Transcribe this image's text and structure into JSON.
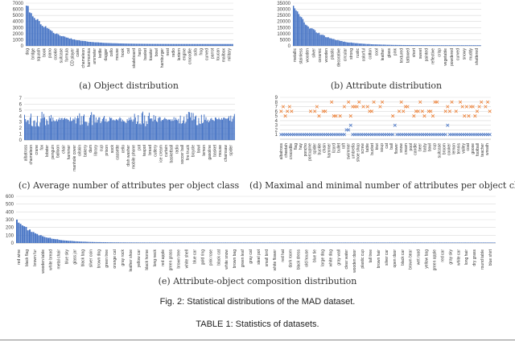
{
  "figure_caption": "Fig. 2: Statistical distributions of the MAD dataset.",
  "table_caption": "TABLE 1: Statistics of datasets.",
  "colors": {
    "bar": "#4472c4",
    "orange": "#ed7d31",
    "blue": "#4472c4",
    "grid": "#d9d9d9"
  },
  "chart_data": [
    {
      "id": "a",
      "type": "bar",
      "title": "(a) Object distribution",
      "ylim": [
        0,
        7000
      ],
      "yticks": [
        0,
        1000,
        2000,
        3000,
        4000,
        5000,
        6000,
        7000
      ],
      "n_bars": 130,
      "head": 6700,
      "decay": 14,
      "tail": 300,
      "categories": [
        "dog",
        "bridge",
        "squash",
        "book",
        "piano",
        "cookie",
        "suitcase",
        "formula",
        "CD player",
        "cake",
        "chameleon",
        "harmonica",
        "ammeter",
        "kettle",
        "dagger",
        "cello",
        "electric",
        "skateboard",
        "bowl",
        "bus",
        "toaster",
        "apple",
        "caterpillar",
        "goose",
        "curtain",
        "chess",
        "fruit",
        "picture",
        "toad",
        "crocodile",
        "window",
        "cherry",
        "gloves",
        "crossbow",
        "wallet",
        "cream",
        "plan",
        "cockroach",
        "chair",
        "hut",
        "bottle",
        "basket",
        "lock",
        "medicine",
        "hat",
        "skirt",
        "lantern",
        "rabbit",
        "brush",
        "apple pie",
        "coffee",
        "rocket",
        "snow",
        "microphone",
        "cat",
        "shoe",
        "umbrella",
        "pineapple",
        "hammer",
        "water",
        "shelf",
        "kite",
        "jar",
        "handbag",
        "pencil",
        "tree",
        "bread",
        "cup",
        "corn",
        "bench",
        "house",
        "robot",
        "cork",
        "motor",
        "mirror",
        "table",
        "hamster",
        "sofa",
        "fox",
        "frog",
        "hamburger",
        "cock",
        "hook",
        "radio",
        "vase",
        "hay",
        "engine",
        "nest",
        "wheel",
        "dryer",
        "gift",
        "soup",
        "rug",
        "pumpkin",
        "curved",
        "fish",
        "arrow",
        "lamp",
        "mouse",
        "guitar"
      ],
      "categories_shown": [
        "dog",
        "bridge",
        "squash",
        "book",
        "piano",
        "cookie",
        "suitcase",
        "formula",
        "CD player",
        "cake",
        "chameleon",
        "harmonica",
        "ammeter",
        "kettle",
        "dagger",
        "cello",
        "mouse",
        "hook",
        "cat",
        "skateboard",
        "harp",
        "basket",
        "toaster",
        "bowl",
        "hamburger",
        "nest",
        "radio",
        "lantern",
        "engine",
        "crocodile",
        "sofa",
        "frog",
        "curved",
        "parrot",
        "toucan",
        "mailbox",
        "military"
      ]
    },
    {
      "id": "b",
      "type": "bar",
      "title": "(b) Attribute distribution",
      "ylim": [
        0,
        35000
      ],
      "yticks": [
        0,
        5000,
        10000,
        15000,
        20000,
        25000,
        30000,
        35000
      ],
      "n_bars": 140,
      "head": 32000,
      "decay": 16,
      "tail": 500,
      "categories_shown": [
        "metallic",
        "stainless",
        "wooden",
        "silver",
        "ceramic",
        "wooden",
        "plastic",
        "decorative",
        "circular",
        "strong",
        "rustic",
        "colorful",
        "cotton",
        "cool",
        "leather",
        "glass",
        "pink",
        "textured",
        "tattooed",
        "short",
        "sweet",
        "painted",
        "reflective",
        "crisp",
        "vegetable",
        "powdered",
        "curved",
        "snowy",
        "muddy",
        "shattered"
      ]
    },
    {
      "id": "c",
      "type": "bar",
      "title": "(c) Average number of attributes per object class",
      "ylim": [
        0,
        7
      ],
      "yticks": [
        0,
        1,
        2,
        3,
        4,
        5,
        6,
        7
      ],
      "n_bars": 230,
      "mean": 3.5,
      "amp": 1.3,
      "categories_shown": [
        "albatross",
        "chameleon",
        "crane",
        "fox",
        "lobster",
        "penguin",
        "balloon",
        "chair",
        "hammer",
        "manhole cover",
        "oilskin",
        "bakery",
        "dam",
        "library",
        "cup",
        "prison",
        "sock",
        "cassette",
        "cello",
        "dish washer",
        "mobile phone",
        "pot",
        "teapot",
        "bread",
        "cutlery",
        "ice cream",
        "curtain",
        "basketball",
        "radio",
        "soccer ball",
        "fire truck",
        "bicycle",
        "bowl",
        "lemon",
        "gasoline",
        "basket",
        "mouse",
        "chainsaw",
        "spider"
      ]
    },
    {
      "id": "d",
      "type": "scatter",
      "title": "(d) Maximal and minimal number of attributes per object class",
      "ylim": [
        0,
        9
      ],
      "yticks": [
        1,
        2,
        3,
        4,
        5,
        6,
        7,
        8,
        9
      ],
      "n_points": 100,
      "series": [
        {
          "name": "max",
          "color": "#ed7d31",
          "marker": "x",
          "base": 6.5,
          "amp": 1.6
        },
        {
          "name": "min",
          "color": "#4472c4",
          "marker": "x",
          "base": 1.0,
          "amp": 0.0
        }
      ],
      "categories_shown": [
        "albatross",
        "cheetah",
        "crocodile",
        "flag",
        "hay",
        "poncho",
        "porcupine",
        "spider",
        "buckle",
        "chain",
        "hammer",
        "lizard",
        "bullet",
        "raft",
        "swimmer",
        "umbrella",
        "shoe shop",
        "screw",
        "table",
        "bucket",
        "kiwi",
        "soup",
        "cat",
        "ball",
        "flower",
        "snow",
        "cream",
        "pool",
        "candle",
        "beer",
        "baby",
        "bowl",
        "cup",
        "suitcase",
        "broom",
        "cooker",
        "lemon",
        "tennis",
        "valley",
        "coat",
        "goose",
        "football",
        "teacher",
        "wreath"
      ]
    },
    {
      "id": "e",
      "type": "bar",
      "title": "(e) Attribute-object composition distribution",
      "ylim": [
        0,
        600
      ],
      "yticks": [
        0,
        100,
        200,
        300,
        400,
        500,
        600
      ],
      "n_bars": 260,
      "head": 300,
      "decay": 11,
      "tail": 6,
      "categories_shown": [
        "red wine",
        "black flag",
        "brown fur",
        "wooden table",
        "white bread",
        "metal chair",
        "blue sky",
        "glass jar",
        "black bag",
        "silver coin",
        "brown dog",
        "green tree",
        "orange cat",
        "gray rock",
        "leather shoe",
        "yellow car",
        "black horse",
        "long neck",
        "red apple",
        "green grass",
        "brown tree",
        "white shell",
        "blue car",
        "gold ring",
        "pink rose",
        "black cat",
        "white snow",
        "brown bag",
        "green leaf",
        "gray cat",
        "steel pot",
        "small bird",
        "white flower",
        "red hat",
        "dark room",
        "black dress",
        "old house",
        "blue tie",
        "large dog",
        "white dog",
        "gray wall",
        "clear water",
        "wooden door",
        "plastic cup",
        "tall tree",
        "brown hair",
        "silver car",
        "open door",
        "black car",
        "brown bear",
        "wet road",
        "yellow bag",
        "green apple",
        "red car",
        "gray sky",
        "white car",
        "long hair",
        "dry grass",
        "round table",
        "blue shirt"
      ]
    }
  ]
}
